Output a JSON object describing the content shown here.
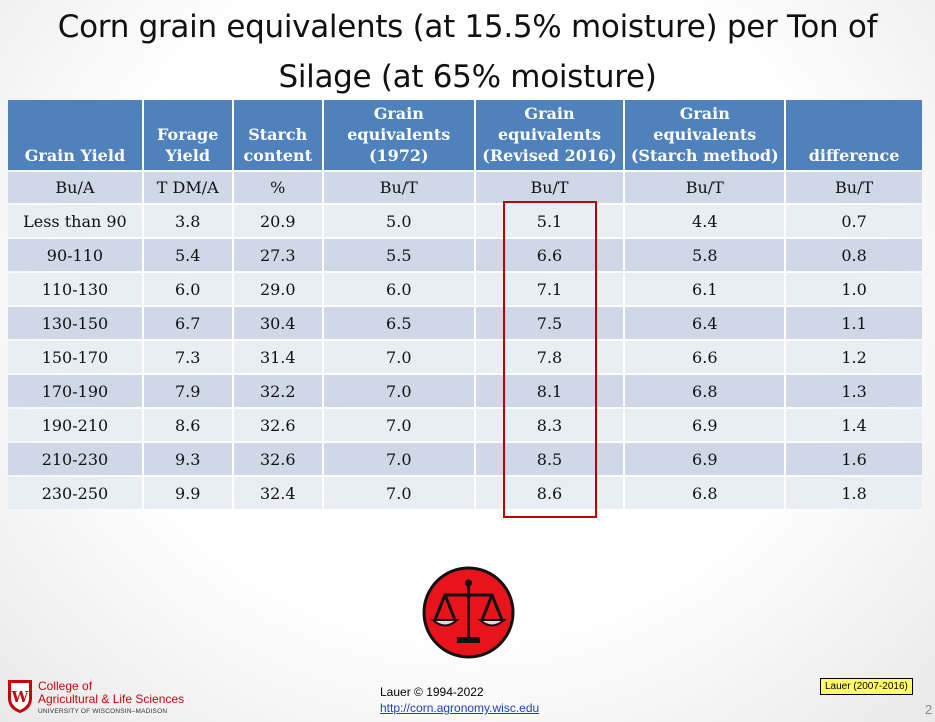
{
  "slide": {
    "title_line1": "Corn grain equivalents (at 15.5% moisture) per Ton of",
    "title_line2": "Silage (at 65% moisture)",
    "page_number": "2"
  },
  "table": {
    "headers": [
      [
        "Grain Yield"
      ],
      [
        "Forage",
        "Yield"
      ],
      [
        "Starch",
        "content"
      ],
      [
        "Grain",
        "equivalents",
        "(1972)"
      ],
      [
        "Grain",
        "equivalents",
        "(Revised 2016)"
      ],
      [
        "Grain",
        "equivalents",
        "(Starch method)"
      ],
      [
        "difference"
      ]
    ],
    "units": [
      "Bu/A",
      "T DM/A",
      "%",
      "Bu/T",
      "Bu/T",
      "Bu/T",
      "Bu/T"
    ],
    "rows": [
      [
        "Less than 90",
        "3.8",
        "20.9",
        "5.0",
        "5.1",
        "4.4",
        "0.7"
      ],
      [
        "90-110",
        "5.4",
        "27.3",
        "5.5",
        "6.6",
        "5.8",
        "0.8"
      ],
      [
        "110-130",
        "6.0",
        "29.0",
        "6.0",
        "7.1",
        "6.1",
        "1.0"
      ],
      [
        "130-150",
        "6.7",
        "30.4",
        "6.5",
        "7.5",
        "6.4",
        "1.1"
      ],
      [
        "150-170",
        "7.3",
        "31.4",
        "7.0",
        "7.8",
        "6.6",
        "1.2"
      ],
      [
        "170-190",
        "7.9",
        "32.2",
        "7.0",
        "8.1",
        "6.8",
        "1.3"
      ],
      [
        "190-210",
        "8.6",
        "32.6",
        "7.0",
        "8.3",
        "6.9",
        "1.4"
      ],
      [
        "210-230",
        "9.3",
        "32.6",
        "7.0",
        "8.5",
        "6.9",
        "1.6"
      ],
      [
        "230-250",
        "9.9",
        "32.4",
        "7.0",
        "8.6",
        "6.8",
        "1.8"
      ]
    ],
    "highlight_color": "#c00000",
    "header_color": "#4f81bd"
  },
  "footer": {
    "copyright": "Lauer © 1994-2022",
    "link": "http://corn.agronomy.wisc.edu",
    "citation": "Lauer (2007-2016)",
    "logo_icon": "balance-scale-icon",
    "college_line1": "College of",
    "college_line2": "Agricultural & Life Sciences",
    "college_line3": "UNIVERSITY OF WISCONSIN–MADISON",
    "crest_letter": "W"
  }
}
